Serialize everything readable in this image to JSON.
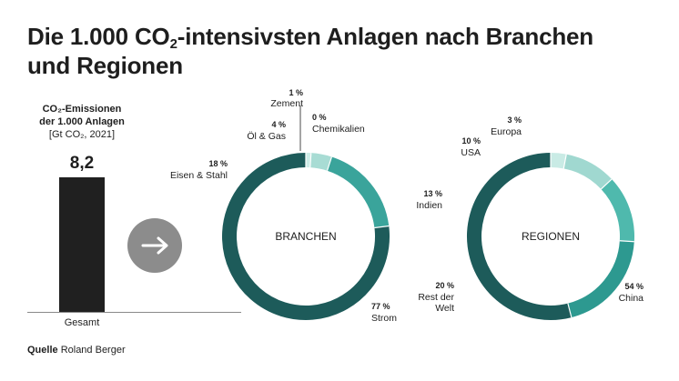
{
  "title": {
    "line1_pre": "Die 1.000 CO",
    "line1_sub": "2",
    "line1_post": "-intensivsten Anlagen nach Branchen",
    "line2": "und Regionen"
  },
  "bar": {
    "caption_line1": "CO₂-Emissionen",
    "caption_line2": "der 1.000 Anlagen",
    "caption_line3": "[Gt CO₂, 2021]",
    "value_label": "8,2",
    "category": "Gesamt"
  },
  "source": {
    "label": "Quelle",
    "text": "Roland Berger"
  },
  "icons": {
    "arrow": "arrow-right-icon"
  },
  "colors": {
    "dark_teal": "#1d5b5a",
    "mid_teal": "#3aa49b",
    "light_teal": "#6cc8bb",
    "pale_teal": "#a8dcd4",
    "very_pale_teal": "#cdecE7",
    "bar": "#202020",
    "arrow_bg": "#8c8c8c"
  },
  "chart_data": [
    {
      "type": "bar",
      "title": "CO₂-Emissionen der 1.000 Anlagen",
      "ylabel": "Gt CO₂, 2021",
      "categories": [
        "Gesamt"
      ],
      "values": [
        8.2
      ]
    },
    {
      "type": "pie",
      "title": "BRANCHEN",
      "slices": [
        {
          "name": "Strom",
          "pct_label": "77 %",
          "value": 77,
          "color": "#1d5b5a"
        },
        {
          "name": "Eisen & Stahl",
          "pct_label": "18 %",
          "value": 18,
          "color": "#3aa49b"
        },
        {
          "name": "Öl & Gas",
          "pct_label": "4 %",
          "value": 4,
          "color": "#a8dcd4"
        },
        {
          "name": "Zement",
          "pct_label": "1 %",
          "value": 1,
          "color": "#cdece7"
        },
        {
          "name": "Chemikalien",
          "pct_label": "0 %",
          "value": 0,
          "color": "#e4f4f1"
        }
      ]
    },
    {
      "type": "pie",
      "title": "REGIONEN",
      "slices": [
        {
          "name": "China",
          "pct_label": "54 %",
          "value": 54,
          "color": "#1d5b5a"
        },
        {
          "name": "Rest der Welt",
          "pct_label": "20 %",
          "value": 20,
          "color": "#2d9990"
        },
        {
          "name": "Indien",
          "pct_label": "13 %",
          "value": 13,
          "color": "#4fb9ad"
        },
        {
          "name": "USA",
          "pct_label": "10 %",
          "value": 10,
          "color": "#a0d8d0"
        },
        {
          "name": "Europa",
          "pct_label": "3 %",
          "value": 3,
          "color": "#c9ebe5"
        }
      ]
    }
  ]
}
